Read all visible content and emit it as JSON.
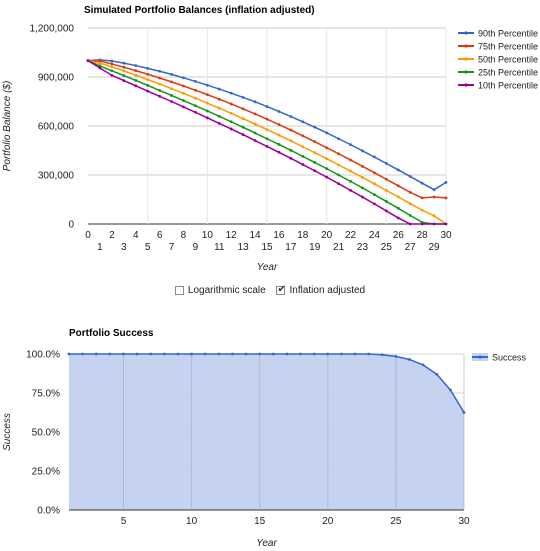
{
  "controls": {
    "log_scale": {
      "label": "Logarithmic scale",
      "checked": false
    },
    "inflation": {
      "label": "Inflation adjusted",
      "checked": true
    }
  },
  "chart_data": [
    {
      "type": "line",
      "title": "Simulated Portfolio Balances (inflation adjusted)",
      "xlabel": "Year",
      "ylabel": "Portfolio Balance ($)",
      "xlim": [
        0,
        30
      ],
      "ylim": [
        0,
        1200000
      ],
      "y_ticks": [
        "0",
        "300,000",
        "600,000",
        "900,000",
        "1,200,000"
      ],
      "x_ticks_top_row": [
        "0",
        "2",
        "4",
        "6",
        "8",
        "10",
        "12",
        "14",
        "16",
        "18",
        "20",
        "22",
        "24",
        "26",
        "28",
        "30"
      ],
      "x_ticks_bottom_row": [
        "1",
        "3",
        "5",
        "7",
        "9",
        "11",
        "13",
        "15",
        "17",
        "19",
        "21",
        "23",
        "25",
        "27",
        "29"
      ],
      "legend_position": "right",
      "grid": true,
      "x": [
        0,
        1,
        2,
        3,
        4,
        5,
        6,
        7,
        8,
        9,
        10,
        11,
        12,
        13,
        14,
        15,
        16,
        17,
        18,
        19,
        20,
        21,
        22,
        23,
        24,
        25,
        26,
        27,
        28,
        29,
        30
      ],
      "series": [
        {
          "name": "90th Percentile",
          "color": "#3366cc",
          "values": [
            1000000,
            1005000,
            998000,
            985000,
            970000,
            953000,
            935000,
            916000,
            895000,
            873000,
            850000,
            826000,
            801000,
            775000,
            748000,
            719000,
            689000,
            658000,
            626000,
            593000,
            558000,
            522000,
            486000,
            448000,
            410000,
            371000,
            331000,
            291000,
            250000,
            210000,
            255000
          ]
        },
        {
          "name": "75th Percentile",
          "color": "#dc3912",
          "values": [
            1000000,
            998000,
            980000,
            960000,
            939000,
            917000,
            894000,
            870000,
            845000,
            819000,
            792000,
            764000,
            735000,
            705000,
            674000,
            642000,
            609000,
            575000,
            540000,
            504000,
            467000,
            430000,
            392000,
            353000,
            314000,
            274000,
            234000,
            194000,
            160000,
            165000,
            160000
          ]
        },
        {
          "name": "50th Percentile",
          "color": "#ff9900",
          "values": [
            1000000,
            985000,
            962000,
            937000,
            911000,
            884000,
            857000,
            829000,
            800000,
            770000,
            740000,
            709000,
            678000,
            645000,
            612000,
            578000,
            544000,
            509000,
            473000,
            437000,
            400000,
            362000,
            324000,
            285000,
            246000,
            206000,
            166000,
            125000,
            85000,
            50000,
            0
          ]
        },
        {
          "name": "25th Percentile",
          "color": "#109618",
          "values": [
            1000000,
            968000,
            938000,
            909000,
            879000,
            849000,
            818000,
            787000,
            756000,
            724000,
            692000,
            659000,
            626000,
            592000,
            557000,
            522000,
            487000,
            451000,
            414000,
            377000,
            339000,
            300000,
            261000,
            221000,
            180000,
            138000,
            96000,
            53000,
            10000,
            0,
            0
          ]
        },
        {
          "name": "10th Percentile",
          "color": "#990099",
          "values": [
            1000000,
            955000,
            910000,
            878000,
            846000,
            814000,
            782000,
            750000,
            717000,
            684000,
            650000,
            616000,
            582000,
            547000,
            511000,
            475000,
            439000,
            402000,
            364000,
            326000,
            287000,
            247000,
            206000,
            165000,
            123000,
            80000,
            37000,
            0,
            0,
            0,
            0
          ]
        }
      ]
    },
    {
      "type": "area",
      "title": "Portfolio Success",
      "xlabel": "Year",
      "ylabel": "Success",
      "xlim": [
        1,
        30
      ],
      "ylim": [
        0,
        1
      ],
      "y_ticks": [
        "0.0%",
        "25.0%",
        "50.0%",
        "75.0%",
        "100.0%"
      ],
      "x_ticks": [
        "5",
        "10",
        "15",
        "20",
        "25",
        "30"
      ],
      "legend_position": "right",
      "grid": true,
      "x": [
        1,
        2,
        3,
        4,
        5,
        6,
        7,
        8,
        9,
        10,
        11,
        12,
        13,
        14,
        15,
        16,
        17,
        18,
        19,
        20,
        21,
        22,
        23,
        24,
        25,
        26,
        27,
        28,
        29,
        30
      ],
      "series": [
        {
          "name": "Success",
          "color": "#3366cc",
          "fill": "#c5d2f0",
          "values": [
            1,
            1,
            1,
            1,
            1,
            1,
            1,
            1,
            1,
            1,
            1,
            1,
            1,
            1,
            1,
            1,
            1,
            1,
            1,
            1,
            1,
            1,
            1,
            0.995,
            0.985,
            0.965,
            0.93,
            0.87,
            0.77,
            0.625
          ]
        }
      ]
    }
  ]
}
